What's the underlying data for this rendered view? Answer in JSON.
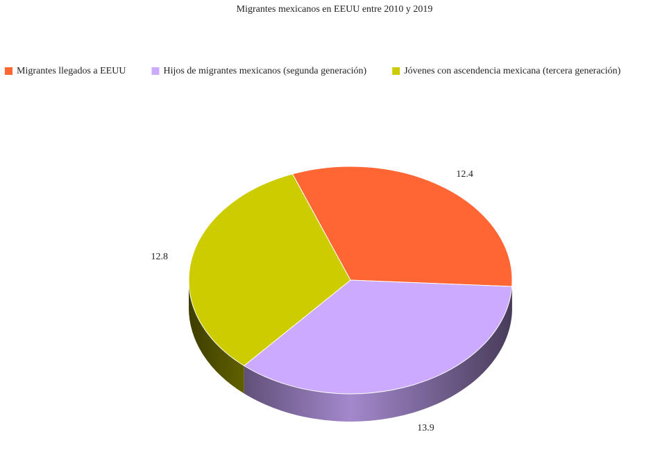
{
  "chart_data": {
    "type": "pie",
    "title": "Migrantes mexicanos en EEUU entre 2010 y 2019",
    "categories": [
      "Migrantes llegados a EEUU",
      "Hijos de migrantes mexicanos (segunda generación)",
      "Jóvenes con ascendencia mexicana (tercera generación)"
    ],
    "values": [
      12.4,
      13.9,
      12.8
    ],
    "colors": [
      "#ff6633",
      "#ccaaff",
      "#cccc00"
    ],
    "legend": "top"
  }
}
